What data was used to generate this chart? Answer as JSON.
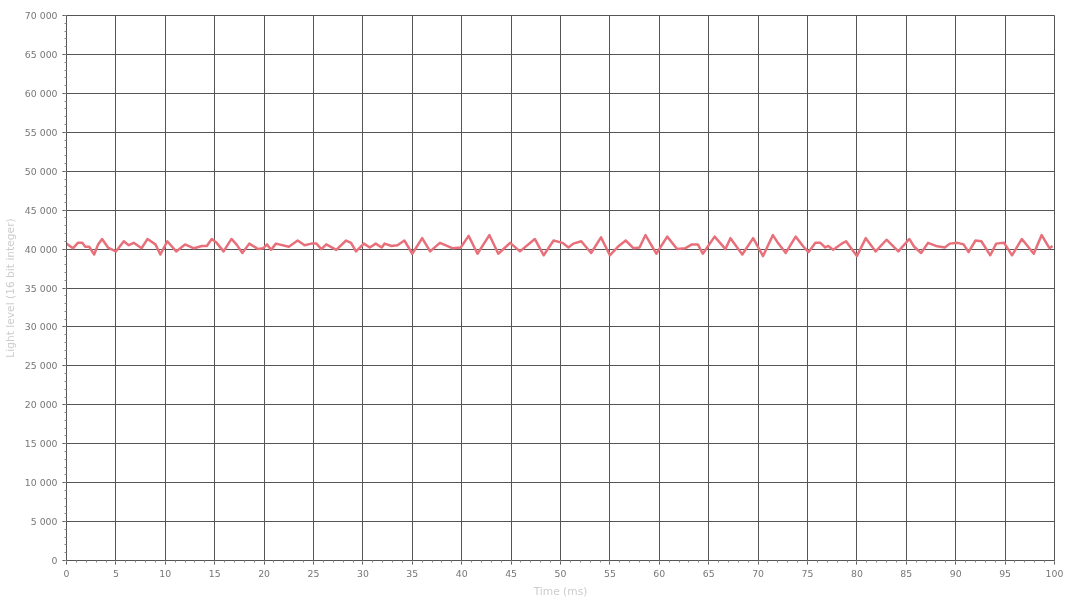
{
  "chart_data": {
    "type": "line",
    "xlabel": "Time (ms)",
    "ylabel": "Light level (16 bit integer)",
    "xlim": [
      0,
      100
    ],
    "ylim": [
      0,
      70000
    ],
    "xticks": [
      0,
      5,
      10,
      15,
      20,
      25,
      30,
      35,
      40,
      45,
      50,
      55,
      60,
      65,
      70,
      75,
      80,
      85,
      90,
      95,
      100
    ],
    "yticks": [
      0,
      {
        "value": 5000,
        "label": "5 000"
      },
      {
        "value": 10000,
        "label": "10 000"
      },
      {
        "value": 15000,
        "label": "15 000"
      },
      {
        "value": 20000,
        "label": "20 000"
      },
      {
        "value": 25000,
        "label": "25 000"
      },
      {
        "value": 30000,
        "label": "30 000"
      },
      {
        "value": 35000,
        "label": "35 000"
      },
      {
        "value": 40000,
        "label": "40 000"
      },
      {
        "value": 45000,
        "label": "45 000"
      },
      {
        "value": 50000,
        "label": "50 000"
      },
      {
        "value": 55000,
        "label": "55 000"
      },
      {
        "value": 60000,
        "label": "60 000"
      },
      {
        "value": 65000,
        "label": "65 000"
      },
      {
        "value": 70000,
        "label": "70 000"
      }
    ],
    "grid": true,
    "line_style": "solid",
    "series": [
      {
        "color": "#e8707a",
        "x": [
          0,
          0.65,
          1.15,
          1.6,
          1.9,
          2.3,
          2.8,
          3.2,
          3.6,
          4.2,
          5.0,
          5.8,
          6.3,
          6.8,
          7.6,
          8.2,
          9.0,
          9.5,
          10.2,
          11.1,
          12.0,
          12.9,
          13.7,
          14.2,
          14.7,
          15.2,
          15.9,
          16.7,
          17.2,
          17.8,
          18.5,
          19.4,
          19.9,
          20.3,
          20.7,
          21.2,
          22.5,
          23.4,
          24.1,
          24.8,
          25.3,
          25.8,
          26.3,
          27.3,
          28.3,
          28.8,
          29.3,
          30.1,
          30.7,
          31.3,
          31.9,
          32.2,
          32.9,
          33.5,
          34.2,
          35.0,
          36.0,
          36.8,
          37.8,
          39.1,
          39.9,
          40.7,
          41.6,
          42.8,
          43.7,
          44.9,
          45.9,
          47.4,
          48.3,
          49.3,
          50.2,
          50.8,
          51.3,
          52.1,
          53.1,
          54.1,
          55.0,
          55.9,
          56.6,
          57.4,
          58.0,
          58.6,
          59.7,
          60.8,
          61.8,
          62.6,
          63.3,
          63.9,
          64.4,
          65.6,
          66.7,
          67.2,
          68.4,
          69.5,
          70.5,
          71.5,
          72.0,
          72.8,
          73.8,
          74.6,
          75.1,
          75.8,
          76.3,
          76.8,
          77.1,
          77.6,
          78.6,
          78.9,
          80.0,
          80.9,
          81.9,
          83.0,
          84.2,
          85.3,
          85.8,
          86.5,
          87.2,
          88.0,
          88.9,
          89.4,
          90.2,
          90.8,
          91.3,
          92.0,
          92.6,
          93.5,
          94.1,
          94.9,
          95.7,
          96.7,
          97.9,
          98.7,
          99.5,
          99.8
        ],
        "values": [
          40700,
          40100,
          40800,
          40800,
          40300,
          40300,
          39300,
          40600,
          41300,
          40200,
          39700,
          41000,
          40500,
          40800,
          40100,
          41300,
          40600,
          39300,
          41000,
          39700,
          40600,
          40100,
          40400,
          40400,
          41300,
          40800,
          39700,
          41300,
          40600,
          39500,
          40700,
          40000,
          40100,
          40600,
          39900,
          40700,
          40300,
          41100,
          40500,
          40700,
          40700,
          40000,
          40600,
          39900,
          41100,
          40800,
          39700,
          40700,
          40200,
          40700,
          40200,
          40700,
          40400,
          40500,
          41100,
          39400,
          41400,
          39700,
          40800,
          40100,
          40200,
          41700,
          39400,
          41800,
          39400,
          40800,
          39700,
          41300,
          39200,
          41100,
          40800,
          40200,
          40700,
          41000,
          39500,
          41500,
          39200,
          40400,
          41100,
          40100,
          40200,
          41800,
          39400,
          41600,
          40000,
          40100,
          40600,
          40600,
          39400,
          41600,
          40000,
          41400,
          39300,
          41400,
          39100,
          41800,
          40800,
          39500,
          41600,
          40300,
          39600,
          40800,
          40800,
          40200,
          40400,
          39900,
          40800,
          41000,
          39100,
          41400,
          39700,
          41200,
          39700,
          41300,
          40300,
          39500,
          40800,
          40400,
          40200,
          40700,
          40800,
          40600,
          39600,
          41100,
          41000,
          39200,
          40700,
          40800,
          39200,
          41300,
          39400,
          41800,
          40100,
          40400
        ]
      }
    ]
  }
}
